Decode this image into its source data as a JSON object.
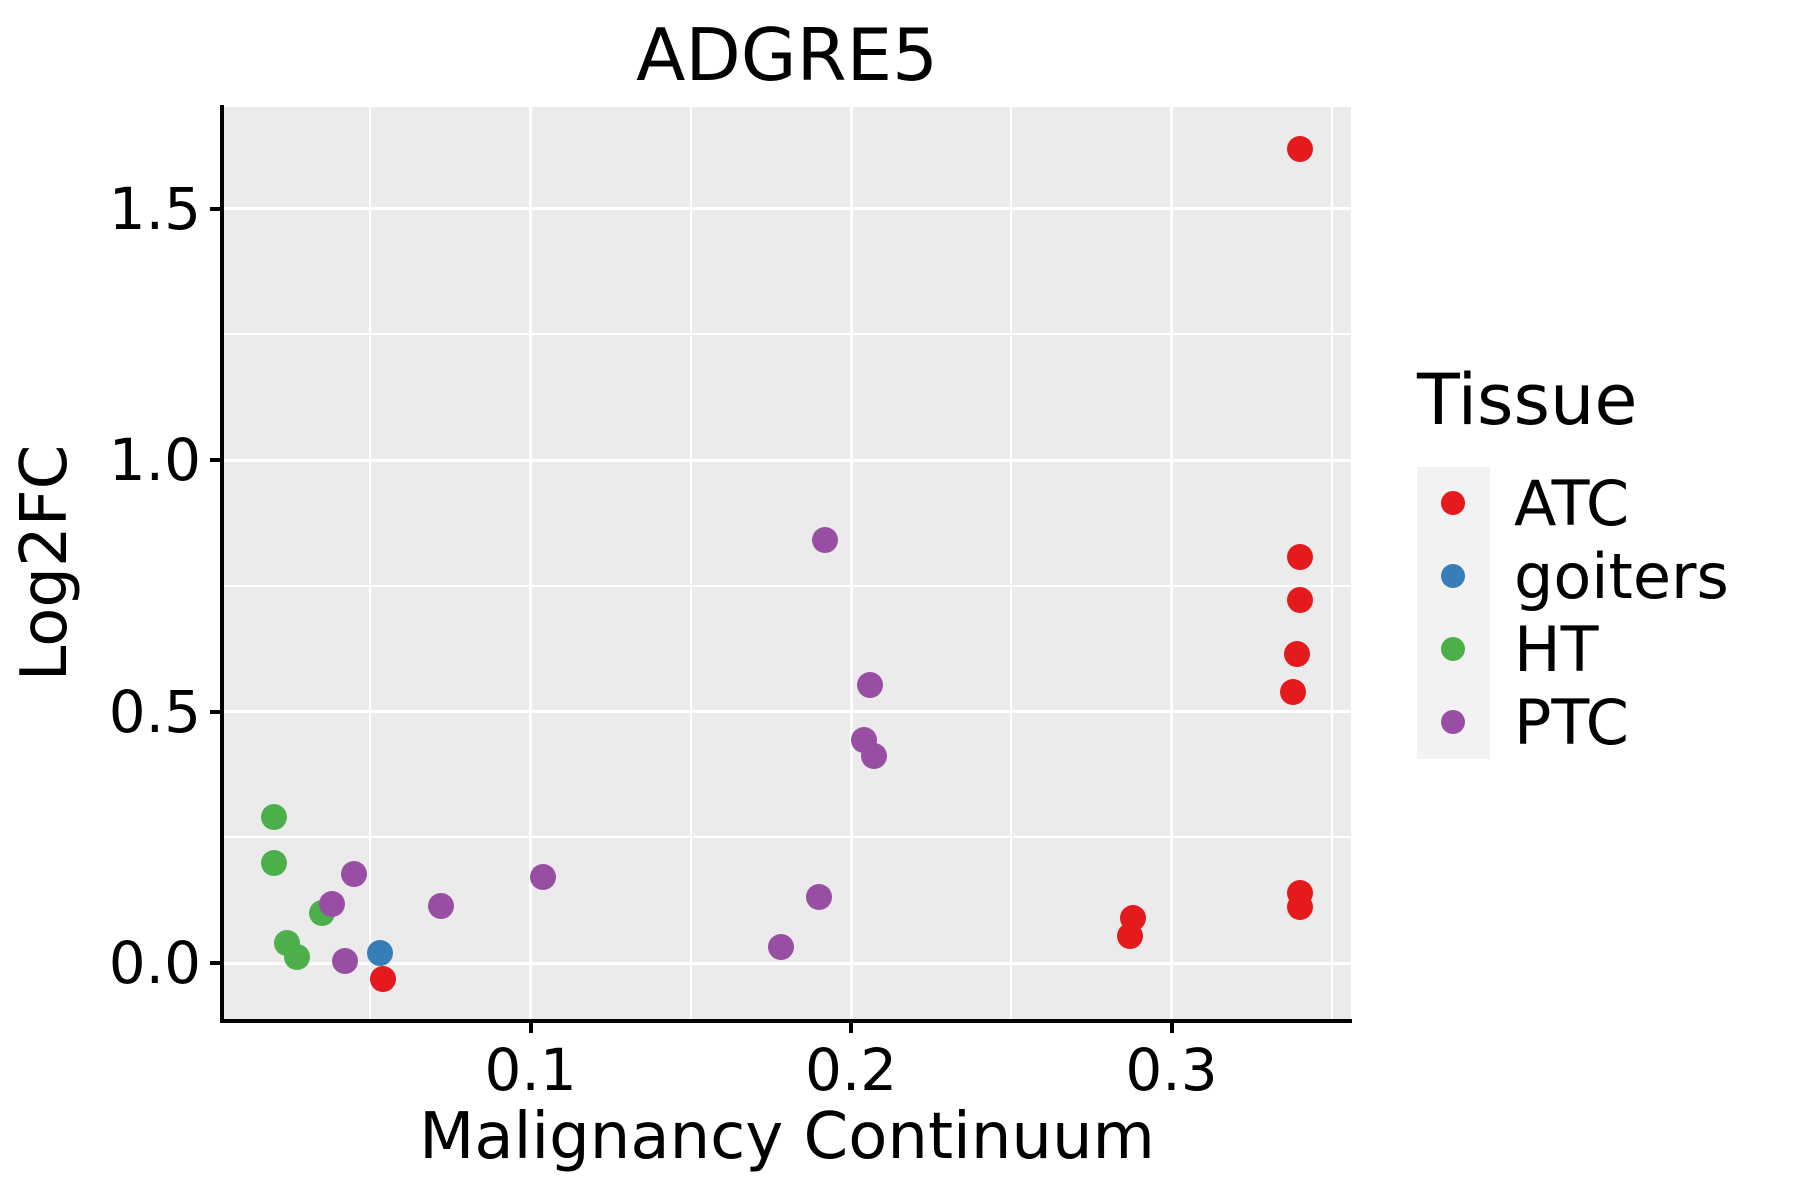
{
  "chart": {
    "title": "ADGRE5",
    "x_axis": {
      "title": "Malignancy Continuum",
      "tick_labels": [
        "0.1",
        "0.2",
        "0.3"
      ],
      "tick_values": [
        0.1,
        0.2,
        0.3
      ],
      "minor_tick_values": [
        0.05,
        0.15,
        0.25,
        0.35
      ],
      "range": [
        0.004,
        0.356
      ]
    },
    "y_axis": {
      "title": "Log2FC",
      "tick_labels": [
        "0.0",
        "0.5",
        "1.0",
        "1.5"
      ],
      "tick_values": [
        0.0,
        0.5,
        1.0,
        1.5
      ],
      "minor_tick_values": [
        0.25,
        0.75,
        1.25
      ],
      "range": [
        -0.113,
        1.702
      ]
    },
    "legend": {
      "title": "Tissue",
      "entries": [
        {
          "label": "ATC",
          "color": "#E41A1C"
        },
        {
          "label": "goiters",
          "color": "#377EB8"
        },
        {
          "label": "HT",
          "color": "#4DAF4A"
        },
        {
          "label": "PTC",
          "color": "#984EA3"
        }
      ]
    },
    "colors": {
      "panel_background": "#EBEBEB",
      "grid": "#FFFFFF",
      "axis": "#000000",
      "text": "#000000",
      "legend_key_background": "#F2F2F2",
      "atc_red": "#E41A1C",
      "goiters_blue": "#377EB8",
      "ht_green": "#4DAF4A",
      "ptc_purple": "#984EA3"
    }
  },
  "chart_data": {
    "type": "scatter",
    "title": "ADGRE5",
    "xlabel": "Malignancy Continuum",
    "ylabel": "Log2FC",
    "xlim": [
      0.004,
      0.356
    ],
    "ylim": [
      -0.113,
      1.702
    ],
    "x_ticks": [
      0.1,
      0.2,
      0.3
    ],
    "y_ticks": [
      0.0,
      0.5,
      1.0,
      1.5
    ],
    "grid": "on",
    "legend_title": "Tissue",
    "legend_position": "right",
    "series": [
      {
        "name": "ATC",
        "color": "#E41A1C",
        "points": [
          [
            0.054,
            -0.032
          ],
          [
            0.287,
            0.054
          ],
          [
            0.288,
            0.089
          ],
          [
            0.338,
            0.539
          ],
          [
            0.339,
            0.614
          ],
          [
            0.34,
            0.722
          ],
          [
            0.34,
            0.807
          ],
          [
            0.34,
            0.111
          ],
          [
            0.34,
            0.139
          ],
          [
            0.34,
            1.618
          ]
        ]
      },
      {
        "name": "goiters",
        "color": "#377EB8",
        "points": [
          [
            0.053,
            0.02
          ]
        ]
      },
      {
        "name": "HT",
        "color": "#4DAF4A",
        "points": [
          [
            0.02,
            0.29
          ],
          [
            0.02,
            0.199
          ],
          [
            0.024,
            0.04
          ],
          [
            0.027,
            0.012
          ],
          [
            0.035,
            0.099
          ]
        ]
      },
      {
        "name": "PTC",
        "color": "#984EA3",
        "points": [
          [
            0.038,
            0.117
          ],
          [
            0.042,
            0.004
          ],
          [
            0.045,
            0.177
          ],
          [
            0.072,
            0.113
          ],
          [
            0.104,
            0.171
          ],
          [
            0.178,
            0.032
          ],
          [
            0.19,
            0.131
          ],
          [
            0.192,
            0.841
          ],
          [
            0.204,
            0.443
          ],
          [
            0.206,
            0.553
          ],
          [
            0.207,
            0.412
          ]
        ]
      }
    ]
  }
}
